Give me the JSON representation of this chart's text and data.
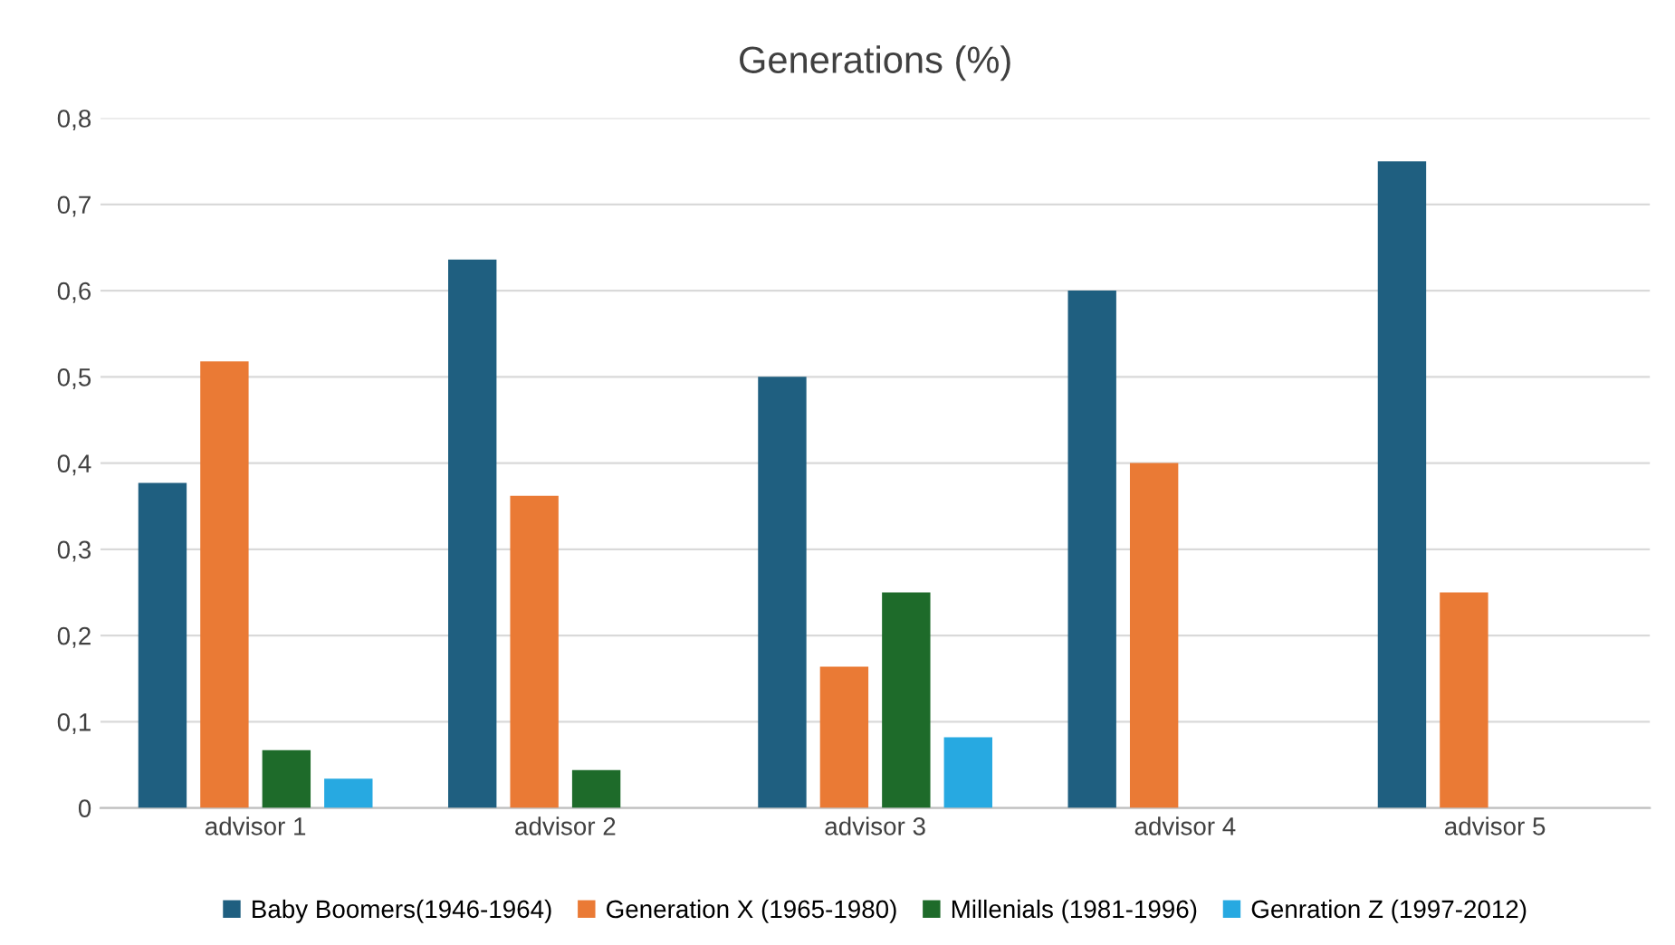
{
  "chart_data": {
    "type": "bar",
    "title": "Generations (%)",
    "categories": [
      "advisor 1",
      "advisor 2",
      "advisor 3",
      "advisor 4",
      "advisor 5"
    ],
    "series": [
      {
        "name": "Baby Boomers(1946-1964)",
        "color": "#1f5f80",
        "values": [
          0.377,
          0.636,
          0.5,
          0.6,
          0.75
        ]
      },
      {
        "name": "Generation X (1965-1980)",
        "color": "#ea7a35",
        "values": [
          0.518,
          0.362,
          0.164,
          0.4,
          0.25
        ]
      },
      {
        "name": "Millenials (1981-1996)",
        "color": "#1e6b2a",
        "values": [
          0.067,
          0.044,
          0.25,
          null,
          null
        ]
      },
      {
        "name": "Genration Z (1997-2012)",
        "color": "#27a9e1",
        "values": [
          0.034,
          null,
          0.082,
          null,
          null
        ]
      }
    ],
    "ylim": [
      0,
      0.8
    ],
    "yticks": [
      {
        "value": 0,
        "label": "0"
      },
      {
        "value": 0.1,
        "label": "0,1"
      },
      {
        "value": 0.2,
        "label": "0,2"
      },
      {
        "value": 0.3,
        "label": "0,3"
      },
      {
        "value": 0.4,
        "label": "0,4"
      },
      {
        "value": 0.5,
        "label": "0,5"
      },
      {
        "value": 0.6,
        "label": "0,6"
      },
      {
        "value": 0.7,
        "label": "0,7"
      },
      {
        "value": 0.8,
        "label": "0,8"
      }
    ],
    "grid": "y",
    "legend": "bottom"
  }
}
